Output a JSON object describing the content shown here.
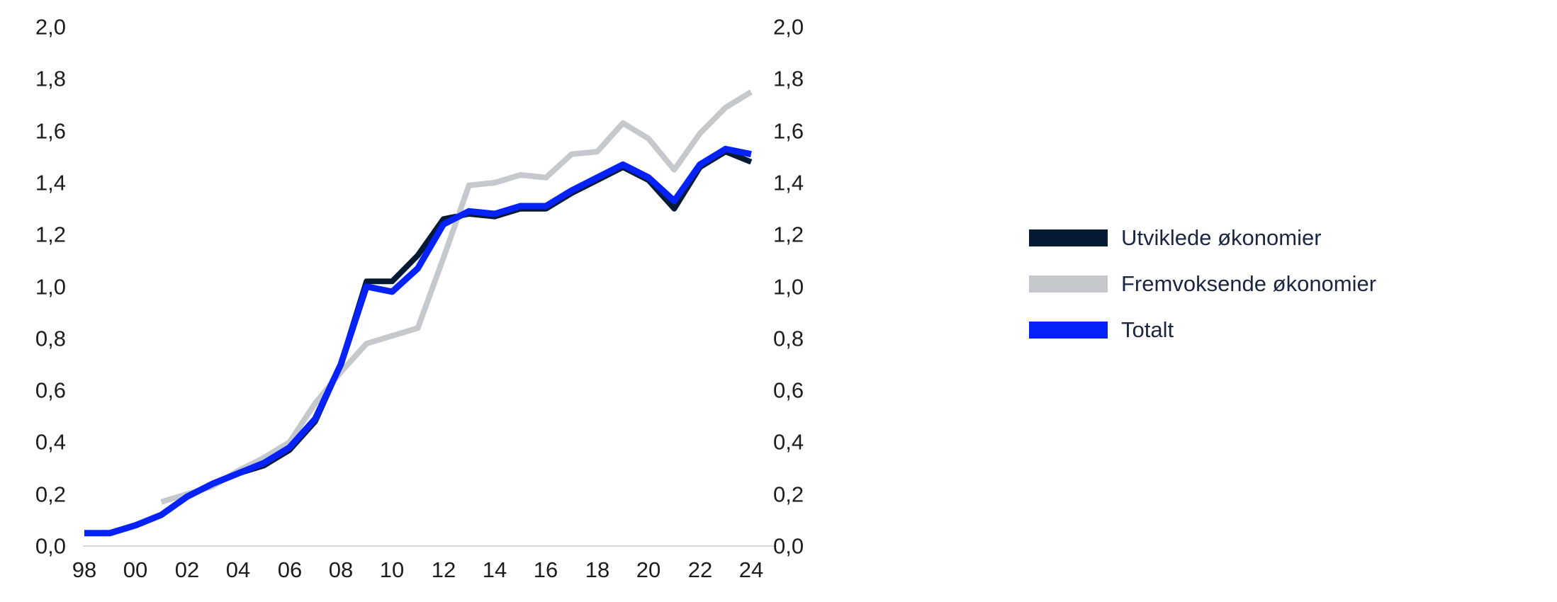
{
  "chart_data": {
    "type": "line",
    "title": "",
    "xlabel": "",
    "ylabel": "",
    "ylim": [
      0.0,
      2.0
    ],
    "grid": "zero-line-only",
    "decimal_separator": ",",
    "legend_position": "right",
    "x": [
      1998,
      1999,
      2000,
      2001,
      2002,
      2003,
      2004,
      2005,
      2006,
      2007,
      2008,
      2009,
      2010,
      2011,
      2012,
      2013,
      2014,
      2015,
      2016,
      2017,
      2018,
      2019,
      2020,
      2021,
      2022,
      2023,
      2024
    ],
    "x_ticks": {
      "years": [
        1998,
        2000,
        2002,
        2004,
        2006,
        2008,
        2010,
        2012,
        2014,
        2016,
        2018,
        2020,
        2022,
        2024
      ],
      "labels": [
        "98",
        "00",
        "02",
        "04",
        "06",
        "08",
        "10",
        "12",
        "14",
        "16",
        "18",
        "20",
        "22",
        "24"
      ]
    },
    "y_ticks": {
      "values": [
        0.0,
        0.2,
        0.4,
        0.6,
        0.8,
        1.0,
        1.2,
        1.4,
        1.6,
        1.8,
        2.0
      ],
      "labels": [
        "0,0",
        "0,2",
        "0,4",
        "0,6",
        "0,8",
        "1,0",
        "1,2",
        "1,4",
        "1,6",
        "1,8",
        "2,0"
      ]
    },
    "series": [
      {
        "name": "Utviklede økonomier",
        "color": "#061a33",
        "line_width": 8,
        "values": [
          0.05,
          0.05,
          0.08,
          0.12,
          0.19,
          0.24,
          0.28,
          0.31,
          0.37,
          0.48,
          0.7,
          1.02,
          1.02,
          1.12,
          1.26,
          1.28,
          1.27,
          1.3,
          1.3,
          1.36,
          1.41,
          1.46,
          1.41,
          1.3,
          1.46,
          1.52,
          1.48
        ]
      },
      {
        "name": "Fremvoksende økonomier",
        "color": "#c5c8cc",
        "line_width": 8,
        "values": [
          null,
          null,
          null,
          0.17,
          0.2,
          0.23,
          0.29,
          0.34,
          0.4,
          0.55,
          0.67,
          0.78,
          0.81,
          0.84,
          1.11,
          1.39,
          1.4,
          1.43,
          1.42,
          1.51,
          1.52,
          1.63,
          1.57,
          1.45,
          1.59,
          1.69,
          1.75
        ]
      },
      {
        "name": "Totalt",
        "color": "#0522fa",
        "line_width": 9,
        "values": [
          0.05,
          0.05,
          0.08,
          0.12,
          0.19,
          0.24,
          0.28,
          0.32,
          0.38,
          0.49,
          0.7,
          1.0,
          0.98,
          1.07,
          1.24,
          1.29,
          1.28,
          1.31,
          1.31,
          1.37,
          1.42,
          1.47,
          1.42,
          1.33,
          1.47,
          1.53,
          1.51
        ]
      }
    ],
    "zero_line_color": "#d9d9d9"
  },
  "legend": {
    "items": [
      {
        "label": "Utviklede økonomier",
        "color": "#061a33"
      },
      {
        "label": "Fremvoksende økonomier",
        "color": "#c5c8cc"
      },
      {
        "label": "Totalt",
        "color": "#0522fa"
      }
    ]
  }
}
